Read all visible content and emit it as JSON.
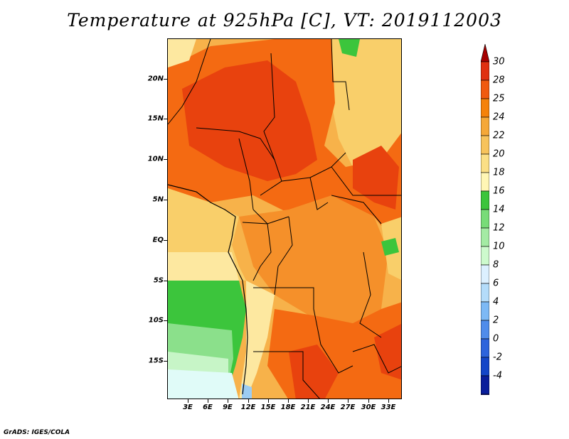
{
  "title": "Temperature at 925hPa [C], VT: 2019112003",
  "credit": "GrADS: IGES/COLA",
  "lat_labels": [
    "20N",
    "15N",
    "10N",
    "5N",
    "EQ",
    "5S",
    "10S",
    "15S"
  ],
  "lon_labels": [
    "3E",
    "6E",
    "9E",
    "12E",
    "15E",
    "18E",
    "21E",
    "24E",
    "27E",
    "30E",
    "33E"
  ],
  "colorbar": {
    "labels": [
      "30",
      "28",
      "25",
      "24",
      "22",
      "20",
      "18",
      "16",
      "14",
      "12",
      "10",
      "8",
      "6",
      "4",
      "2",
      "0",
      "-2",
      "-4"
    ],
    "colors": [
      "#a50000",
      "#e03010",
      "#f05a10",
      "#f5820a",
      "#f5a838",
      "#f7c35c",
      "#fbdf86",
      "#fff6b5",
      "#3cc53c",
      "#78dc78",
      "#a4eba4",
      "#cdfacd",
      "#dcf0ff",
      "#b4dcfa",
      "#7db9f5",
      "#508ceb",
      "#2d64dc",
      "#1446c8",
      "#0a1e9b",
      "#141464",
      "#dcdcf5"
    ]
  },
  "map_colors": {
    "hot": "#e8420e",
    "hot_dark": "#d9340a",
    "warm": "#f46a12",
    "orange": "#f5902a",
    "light_orange": "#f7b24a",
    "yellow": "#f9cf6a",
    "pale": "#fde8a0",
    "green": "#3cc53c",
    "light_green": "#8be08b",
    "pale_green": "#c7f5c7",
    "ocean_pale": "#e0fbf8",
    "blue": "#9cccf2"
  }
}
